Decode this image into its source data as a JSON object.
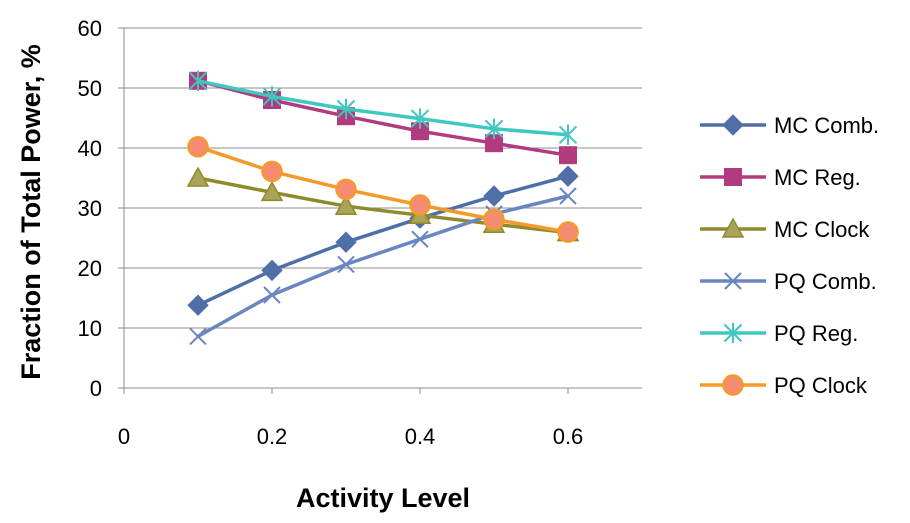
{
  "chart_data": {
    "type": "line",
    "title": "",
    "xlabel": "Activity Level",
    "ylabel": "Fraction of Total Power, %",
    "xlim": [
      0,
      0.7
    ],
    "ylim": [
      0,
      60
    ],
    "x_ticks": [
      0,
      0.2,
      0.4,
      0.6
    ],
    "x_tick_labels": [
      "0",
      "0.2",
      "0.4",
      "0.6"
    ],
    "y_ticks": [
      0,
      10,
      20,
      30,
      40,
      50,
      60
    ],
    "y_tick_labels": [
      "0",
      "10",
      "20",
      "30",
      "40",
      "50",
      "60"
    ],
    "grid": "horizontal",
    "legend": "right",
    "x": [
      0.1,
      0.2,
      0.3,
      0.4,
      0.5,
      0.6
    ],
    "series": [
      {
        "name": "MC Comb.",
        "values": [
          13.8,
          19.6,
          24.3,
          28.3,
          32.0,
          35.3
        ],
        "color": "#4F6FA8",
        "marker": "diamond"
      },
      {
        "name": "MC Reg.",
        "values": [
          51.2,
          48.0,
          45.3,
          42.8,
          40.8,
          38.8
        ],
        "color": "#B23A7E",
        "marker": "square"
      },
      {
        "name": "MC Clock",
        "values": [
          35.0,
          32.6,
          30.3,
          28.8,
          27.3,
          25.9
        ],
        "color": "#8F8A2C",
        "marker": "triangle"
      },
      {
        "name": "PQ Comb.",
        "values": [
          8.6,
          15.5,
          20.6,
          24.8,
          29.0,
          32.0
        ],
        "color": "#6A86C0",
        "marker": "x"
      },
      {
        "name": "PQ Reg.",
        "values": [
          51.2,
          48.6,
          46.5,
          44.9,
          43.2,
          42.2
        ],
        "color": "#3FC7C0",
        "marker": "star"
      },
      {
        "name": "PQ Clock",
        "values": [
          40.2,
          36.1,
          33.1,
          30.5,
          28.1,
          26.0
        ],
        "color": "#F59A2A",
        "marker": "circle"
      }
    ]
  }
}
